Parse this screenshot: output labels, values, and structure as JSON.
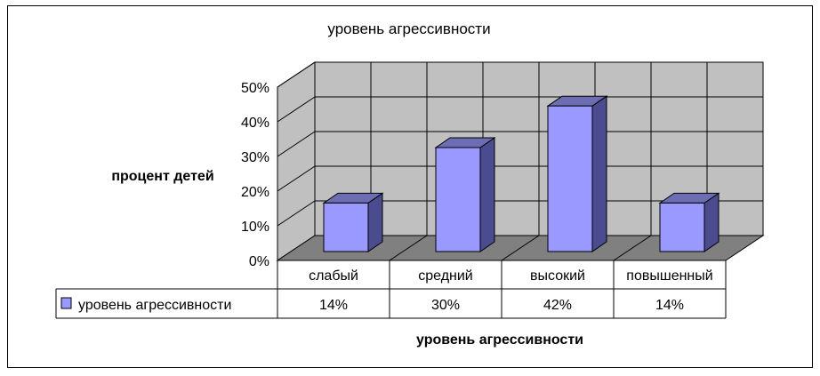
{
  "chart_data": {
    "type": "bar",
    "title": "уровень агрессивности",
    "xlabel": "уровень агрессивности",
    "ylabel": "процент детей",
    "categories": [
      "слабый",
      "средний",
      "высокий",
      "повышенный"
    ],
    "series": [
      {
        "name": "уровень агрессивности",
        "values": [
          14,
          30,
          42,
          14
        ],
        "color": "#9999ff"
      }
    ],
    "data_table": [
      "14%",
      "30%",
      "42%",
      "14%"
    ],
    "ylim": [
      0,
      50
    ],
    "yticks": [
      "0%",
      "10%",
      "20%",
      "30%",
      "40%",
      "50%"
    ],
    "grid": true,
    "legend": "data-table-left",
    "style": "3d-column",
    "colors": {
      "wall": "#c0c0c0",
      "floor": "#808080",
      "bar_front": "#9999ff",
      "bar_side": "#4b4b8f",
      "bar_top": "#6d6db3"
    }
  }
}
